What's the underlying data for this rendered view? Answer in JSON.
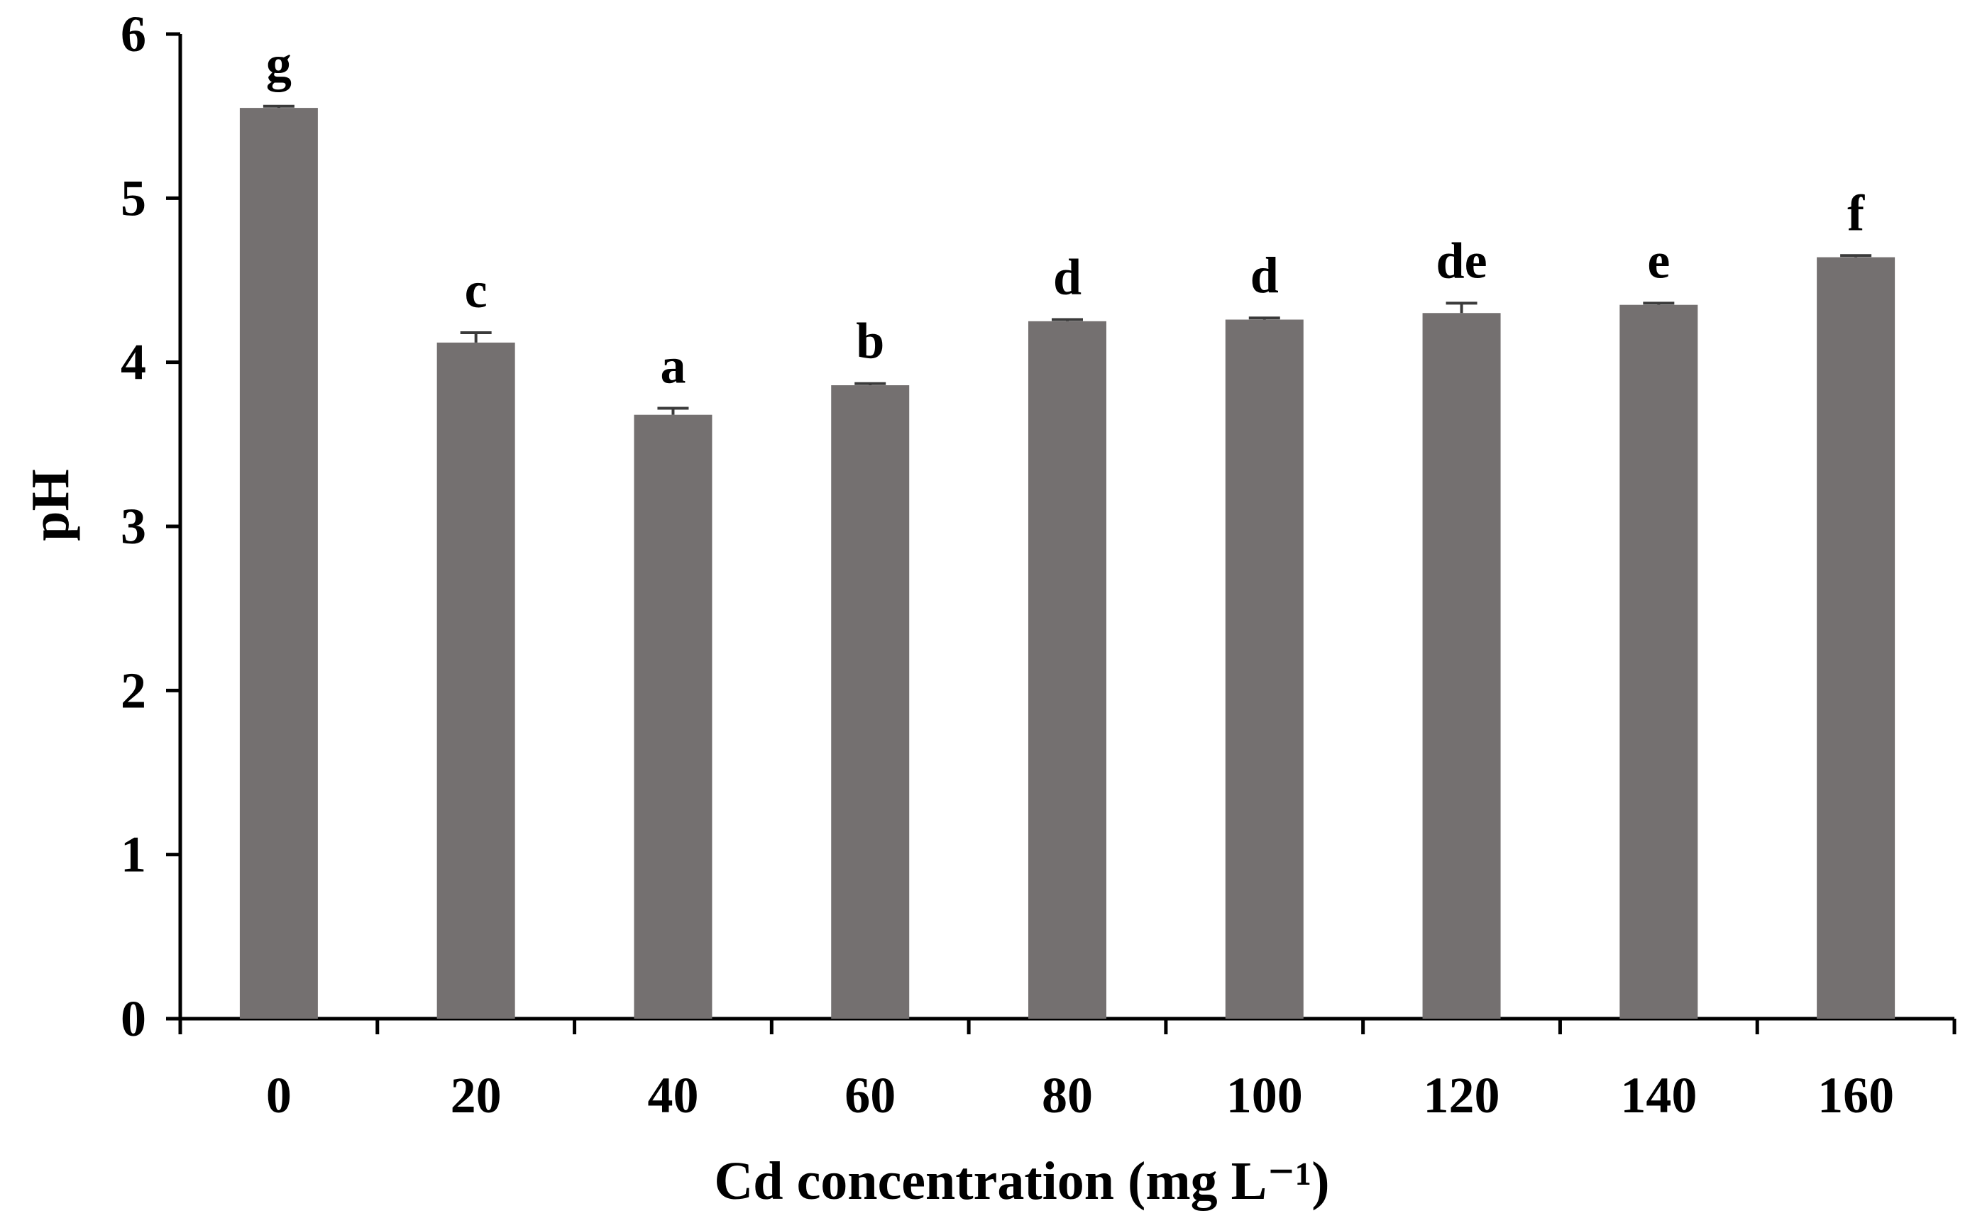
{
  "chart_data": {
    "type": "bar",
    "title": "",
    "xlabel": "Cd concentration (mg L⁻¹)",
    "ylabel": "pH",
    "categories": [
      "0",
      "20",
      "40",
      "60",
      "80",
      "100",
      "120",
      "140",
      "160"
    ],
    "values": [
      5.55,
      4.12,
      3.68,
      3.86,
      4.25,
      4.26,
      4.3,
      4.35,
      4.64
    ],
    "errors": [
      0.01,
      0.06,
      0.04,
      0.01,
      0.01,
      0.01,
      0.06,
      0.01,
      0.01
    ],
    "significance_letters": [
      "g",
      "c",
      "a",
      "b",
      "d",
      "d",
      "de",
      "e",
      "f"
    ],
    "yticks": [
      0,
      1,
      2,
      3,
      4,
      5,
      6
    ],
    "ylim": [
      0,
      6
    ],
    "grid": false,
    "legend": "none",
    "bar_color": "#747070"
  }
}
